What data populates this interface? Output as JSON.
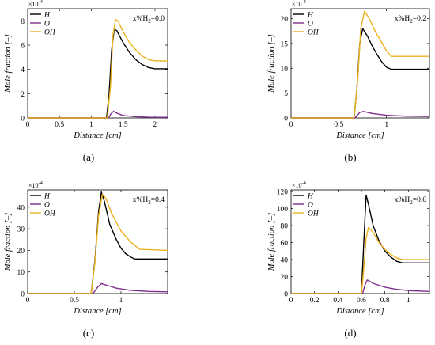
{
  "colors": {
    "H": "#000000",
    "O": "#7e2f8e",
    "OH": "#edb120"
  },
  "chart_data": [
    {
      "type": "line",
      "panel_label": "(a)",
      "annotation": "x%H",
      "annotation_sub": "2",
      "annotation_value": "=0.0",
      "xlabel": "Distance [cm]",
      "ylabel": "Mole fraction [–]",
      "y_exponent": "×10",
      "y_exponent_power": "-4",
      "xlim": [
        0,
        2.2
      ],
      "ylim": [
        0,
        9
      ],
      "xticks": [
        0,
        0.5,
        1,
        1.5,
        2
      ],
      "xtick_labels": [
        "0",
        "0.5",
        "1",
        "1.5",
        "2"
      ],
      "yticks": [
        0,
        2,
        4,
        6,
        8
      ],
      "ytick_labels": [
        "0",
        "2",
        "4",
        "6",
        "8"
      ],
      "legend": [
        "H",
        "O",
        "OH"
      ],
      "series": [
        {
          "name": "H",
          "x": [
            0,
            1.24,
            1.28,
            1.32,
            1.36,
            1.4,
            1.5,
            1.6,
            1.7,
            1.8,
            1.9,
            2.0,
            2.2
          ],
          "y": [
            0,
            0,
            2.0,
            5.6,
            7.3,
            7.2,
            6.2,
            5.4,
            4.8,
            4.4,
            4.15,
            4.05,
            4.05
          ]
        },
        {
          "name": "O",
          "x": [
            0,
            1.27,
            1.31,
            1.35,
            1.4,
            1.5,
            1.7,
            1.9,
            2.2
          ],
          "y": [
            0,
            0,
            0.35,
            0.55,
            0.4,
            0.2,
            0.1,
            0.06,
            0.05
          ]
        },
        {
          "name": "OH",
          "x": [
            0,
            1.25,
            1.3,
            1.34,
            1.38,
            1.42,
            1.5,
            1.6,
            1.7,
            1.8,
            1.9,
            2.0,
            2.2
          ],
          "y": [
            0,
            0,
            2.5,
            6.8,
            8.1,
            8.0,
            7.1,
            6.2,
            5.6,
            5.1,
            4.8,
            4.7,
            4.7
          ]
        }
      ]
    },
    {
      "type": "line",
      "panel_label": "(b)",
      "annotation": "x%H",
      "annotation_sub": "2",
      "annotation_value": "=0.2",
      "xlabel": "Distance [cm]",
      "ylabel": "Mole fraction [–]",
      "y_exponent": "×10",
      "y_exponent_power": "-4",
      "xlim": [
        0,
        1.45
      ],
      "ylim": [
        0,
        22
      ],
      "xticks": [
        0,
        0.5,
        1
      ],
      "xtick_labels": [
        "0",
        "0.5",
        "1"
      ],
      "yticks": [
        0,
        5,
        10,
        15,
        20
      ],
      "ytick_labels": [
        "0",
        "5",
        "10",
        "15",
        "20"
      ],
      "legend": [
        "H",
        "O",
        "OH"
      ],
      "series": [
        {
          "name": "H",
          "x": [
            0,
            0.66,
            0.69,
            0.72,
            0.75,
            0.8,
            0.85,
            0.9,
            0.95,
            1.0,
            1.05,
            1.45
          ],
          "y": [
            0,
            0,
            6,
            15,
            18,
            16.5,
            14.5,
            12.8,
            11.3,
            10.2,
            9.8,
            9.8
          ]
        },
        {
          "name": "O",
          "x": [
            0,
            0.67,
            0.72,
            0.76,
            0.85,
            1.0,
            1.2,
            1.45
          ],
          "y": [
            0,
            0,
            1.1,
            1.3,
            0.9,
            0.55,
            0.35,
            0.3
          ]
        },
        {
          "name": "OH",
          "x": [
            0,
            0.66,
            0.7,
            0.73,
            0.77,
            0.82,
            0.88,
            0.95,
            1.0,
            1.05,
            1.45
          ],
          "y": [
            0,
            0,
            8,
            18,
            21.5,
            20,
            17.5,
            15.2,
            13.5,
            12.4,
            12.4
          ]
        }
      ]
    },
    {
      "type": "line",
      "panel_label": "(c)",
      "annotation": "x%H",
      "annotation_sub": "2",
      "annotation_value": "=0.4",
      "xlabel": "Distance [cm]",
      "ylabel": "Mole fraction [–]",
      "y_exponent": "×10",
      "y_exponent_power": "-4",
      "xlim": [
        0,
        1.5
      ],
      "ylim": [
        0,
        48
      ],
      "xticks": [
        0,
        0.5,
        1
      ],
      "xtick_labels": [
        "0",
        "0.5",
        "1"
      ],
      "yticks": [
        0,
        10,
        20,
        30,
        40
      ],
      "ytick_labels": [
        "0",
        "10",
        "20",
        "30",
        "40"
      ],
      "legend": [
        "H",
        "O",
        "OH"
      ],
      "series": [
        {
          "name": "H",
          "x": [
            0,
            0.68,
            0.72,
            0.76,
            0.79,
            0.82,
            0.88,
            0.95,
            1.0,
            1.05,
            1.1,
            1.15,
            1.5
          ],
          "y": [
            0,
            0,
            15,
            38,
            47,
            43,
            32,
            25,
            21,
            18.5,
            17,
            16,
            16
          ]
        },
        {
          "name": "O",
          "x": [
            0,
            0.7,
            0.75,
            0.79,
            0.85,
            0.95,
            1.1,
            1.3,
            1.5
          ],
          "y": [
            0,
            0,
            3,
            4.6,
            3.8,
            2.5,
            1.5,
            1.0,
            0.8
          ]
        },
        {
          "name": "OH",
          "x": [
            0,
            0.68,
            0.72,
            0.76,
            0.8,
            0.84,
            0.9,
            1.0,
            1.1,
            1.2,
            1.5
          ],
          "y": [
            0,
            0,
            14,
            36,
            46,
            44,
            37,
            29,
            24,
            20.5,
            20
          ]
        }
      ]
    },
    {
      "type": "line",
      "panel_label": "(d)",
      "annotation": "x%H",
      "annotation_sub": "2",
      "annotation_value": "=0.6",
      "xlabel": "Distance [cm]",
      "ylabel": "Mole fraction [–]",
      "y_exponent": "×10",
      "y_exponent_power": "-4",
      "xlim": [
        0,
        1.18
      ],
      "ylim": [
        0,
        122
      ],
      "xticks": [
        0,
        0.2,
        0.4,
        0.6,
        0.8,
        1
      ],
      "xtick_labels": [
        "0",
        "0.2",
        "0.4",
        "0.6",
        "0.8",
        "1"
      ],
      "yticks": [
        0,
        20,
        40,
        60,
        80,
        100,
        120
      ],
      "ytick_labels": [
        "0",
        "20",
        "40",
        "60",
        "80",
        "100",
        "120"
      ],
      "legend": [
        "H",
        "O",
        "OH"
      ],
      "series": [
        {
          "name": "H",
          "x": [
            0,
            0.6,
            0.62,
            0.64,
            0.66,
            0.7,
            0.75,
            0.8,
            0.85,
            0.9,
            0.95,
            1.18
          ],
          "y": [
            0,
            0,
            60,
            116,
            105,
            80,
            62,
            50,
            43,
            38,
            36,
            36
          ]
        },
        {
          "name": "O",
          "x": [
            0,
            0.61,
            0.63,
            0.65,
            0.7,
            0.8,
            0.9,
            1.0,
            1.18
          ],
          "y": [
            0,
            0,
            10,
            16,
            12,
            7.5,
            5,
            3.5,
            2.5
          ]
        },
        {
          "name": "OH",
          "x": [
            0,
            0.6,
            0.62,
            0.64,
            0.66,
            0.7,
            0.75,
            0.8,
            0.85,
            0.9,
            0.95,
            1.18
          ],
          "y": [
            0,
            0,
            30,
            65,
            78,
            72,
            60,
            52,
            46,
            42,
            40,
            40
          ]
        }
      ]
    }
  ]
}
